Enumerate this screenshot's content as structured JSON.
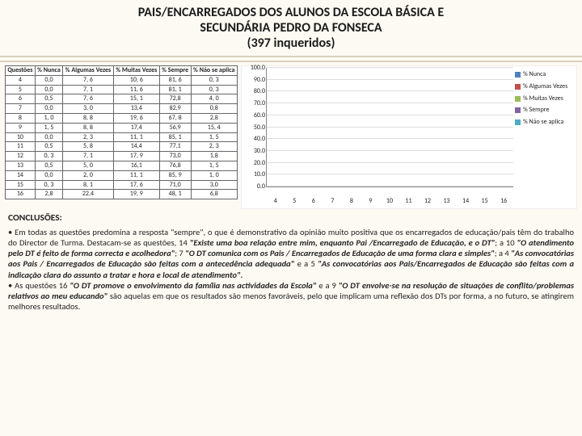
{
  "title_line1": "PAIS/ENCARREGADOS DOS ALUNOS DA ESCOLA BÁSICA E",
  "title_line2": "SECUNDÁRIA PEDRO DA FONSECA",
  "title_line3": "(397 inqueridos)",
  "table": {
    "columns": [
      "Questões",
      "% Nunca",
      "% Algumas Vezes",
      "% Muitas Vezes",
      "% Sempre",
      "% Não se aplica"
    ],
    "rows": [
      [
        "4",
        "0,0",
        "7, 6",
        "10, 6",
        "81, 6",
        "0, 3"
      ],
      [
        "5",
        "0,0",
        "7, 1",
        "11, 6",
        "81, 1",
        "0, 3"
      ],
      [
        "6",
        "0,5",
        "7, 6",
        "15, 1",
        "72,8",
        "4, 0"
      ],
      [
        "7",
        "0,0",
        "3, 0",
        "13,4",
        "82,9",
        "0,8"
      ],
      [
        "8",
        "1, 0",
        "8, 8",
        "19, 6",
        "67, 8",
        "2,8"
      ],
      [
        "9",
        "1, 5",
        "8, 8",
        "17,4",
        "56,9",
        "15, 4"
      ],
      [
        "10",
        "0,0",
        "2, 3",
        "11, 1",
        "85, 1",
        "1, 5"
      ],
      [
        "11",
        "0,5",
        "5, 8",
        "14,4",
        "77,1",
        "2, 3"
      ],
      [
        "12",
        "0, 3",
        "7, 1",
        "17, 9",
        "73,0",
        "1,8"
      ],
      [
        "13",
        "0,5",
        "5, 0",
        "16,1",
        "76,8",
        "1, 5"
      ],
      [
        "14",
        "0,0",
        "2, 0",
        "11, 1",
        "85, 9",
        "1, 0"
      ],
      [
        "15",
        "0, 3",
        "8, 1",
        "17, 6",
        "71,0",
        "3,0"
      ],
      [
        "16",
        "2,8",
        "22,4",
        "19, 9",
        "48, 1",
        "6,8"
      ]
    ]
  },
  "chart": {
    "type": "bar",
    "categories": [
      "4",
      "5",
      "6",
      "7",
      "8",
      "9",
      "10",
      "11",
      "12",
      "13",
      "14",
      "15",
      "16"
    ],
    "series": [
      {
        "name": "% Nunca",
        "color": "#4f81bd",
        "values": [
          0,
          0,
          0.5,
          0,
          1,
          1.5,
          0,
          0.5,
          0.3,
          0.5,
          0,
          0.3,
          2.8
        ]
      },
      {
        "name": "% Algumas Vezes",
        "color": "#c0504d",
        "values": [
          7.6,
          7.1,
          7.6,
          3,
          8.8,
          8.8,
          2.3,
          5.8,
          7.1,
          5,
          2,
          8.1,
          22.4
        ]
      },
      {
        "name": "% Muitas Vezes",
        "color": "#9bbb59",
        "values": [
          10.6,
          11.6,
          15.1,
          13.4,
          19.6,
          17.4,
          11.1,
          14.4,
          17.9,
          16.1,
          11.1,
          17.6,
          19.9
        ]
      },
      {
        "name": "% Sempre",
        "color": "#8064a2",
        "values": [
          81.6,
          81.1,
          72.8,
          82.9,
          67.8,
          56.9,
          85.1,
          77.1,
          73,
          76.8,
          85.9,
          71,
          48.1
        ]
      },
      {
        "name": "% Não se aplica",
        "color": "#4bacc6",
        "values": [
          0.3,
          0.3,
          4,
          0.8,
          2.8,
          15.4,
          1.5,
          2.3,
          1.8,
          1.5,
          1,
          3,
          6.8
        ]
      }
    ],
    "ymax": 100,
    "ytick_step": 10,
    "yticks": [
      "0.0",
      "10.0",
      "20.0",
      "30.0",
      "40.0",
      "50.0",
      "60.0",
      "70.0",
      "80.0",
      "90.0",
      "100.0"
    ],
    "background": "#ffffff",
    "grid_color": "#dddddd"
  },
  "conclusions_title": "CONCLUSÕES:",
  "c1a": "• Em todas as questões predomina a resposta \"sempre\", o que é demonstrativo da opinião muito positiva que os encarregados de educação/pais têm do trabalho do Director de Turma. Destacam-se as questões, 14 ",
  "c1b": "\"Existe uma boa relação entre mim, enquanto Pai /Encarregado de Educação, e o DT\"",
  "c1c": "; a 10 ",
  "c1d": "\"O atendimento pelo DT é feito de forma correcta e acolhedora\"",
  "c1e": "; 7 ",
  "c1f": "\"O DT comunica com os Pais / Encarregados de Educação de uma forma clara e simples\"",
  "c1g": "; a 4 ",
  "c1h": "\"As convocatórias aos Pais / Encarregados de Educação são feitas com a antecedência adequada\"",
  "c1i": " e a 5 ",
  "c1j": "\"As convocatórias aos Pais/Encarregados de Educação são feitas com a indicação clara do assunto a tratar e hora e local de atendimento\".",
  "c2a": "• As questões 16 ",
  "c2b": "\"O DT promove o envolvimento da família nas actividades da Escola\"",
  "c2c": " e a 9 ",
  "c2d": "\"O DT envolve-se na resolução de situações de conflito/problemas relativos ao meu educando\"",
  "c2e": " são aquelas em que os resultados são menos favoráveis, pelo que implicam uma reflexão dos DTs por forma, a no futuro, se atingirem melhores resultados."
}
